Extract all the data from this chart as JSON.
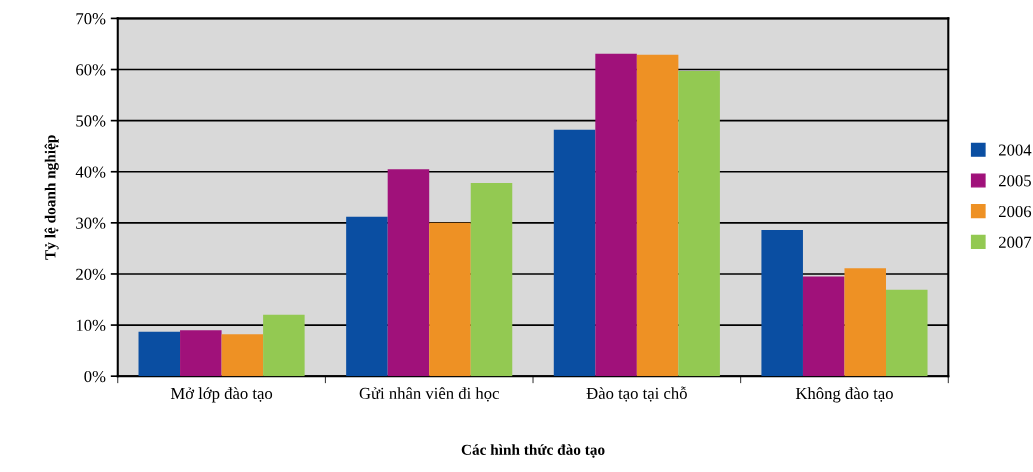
{
  "chart_data": {
    "type": "bar",
    "xlabel": "Các hình thức đào tạo",
    "ylabel": "Tỷ lệ doanh nghiệp",
    "categories": [
      "Mở lớp đào tạo",
      "Gửi nhân viên đi học",
      "Đào tạo tại chỗ",
      "Không đào tạo"
    ],
    "series": [
      {
        "name": "2004",
        "color": "#0a4ea2",
        "values": [
          8.7,
          31.2,
          48.2,
          28.6
        ]
      },
      {
        "name": "2005",
        "color": "#a0117a",
        "values": [
          9.0,
          40.5,
          63.1,
          19.5
        ]
      },
      {
        "name": "2006",
        "color": "#ee9124",
        "values": [
          8.2,
          30.0,
          62.9,
          21.1
        ]
      },
      {
        "name": "2007",
        "color": "#93c952",
        "values": [
          12.0,
          37.8,
          59.7,
          16.9
        ]
      }
    ],
    "ylim": [
      0,
      70
    ],
    "yticks": [
      {
        "value": 0,
        "label": "0%"
      },
      {
        "value": 10,
        "label": "10%"
      },
      {
        "value": 20,
        "label": "20%"
      },
      {
        "value": 30,
        "label": "30%"
      },
      {
        "value": 40,
        "label": "40%"
      },
      {
        "value": 50,
        "label": "50%"
      },
      {
        "value": 60,
        "label": "60%"
      },
      {
        "value": 70,
        "label": "70%"
      }
    ],
    "grid": "y",
    "legend": "right"
  }
}
